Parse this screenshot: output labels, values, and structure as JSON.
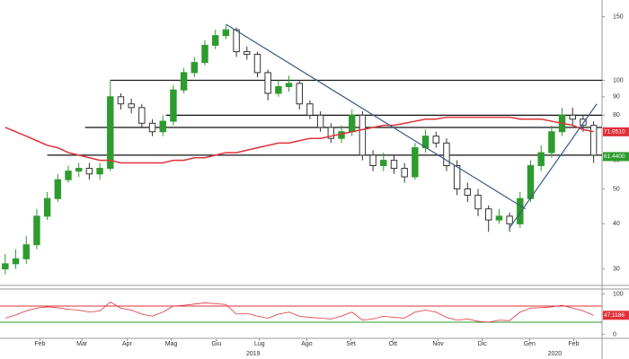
{
  "chart_data": [
    {
      "type": "candlestick",
      "log_scale": true,
      "ylim": [
        27,
        165
      ],
      "xlim": [
        -0.5,
        56.8
      ],
      "yticks": [
        30,
        40,
        50,
        60,
        80,
        90,
        100,
        150
      ],
      "xticks": [
        {
          "value": 3.3,
          "label": "Feb"
        },
        {
          "value": 7.3,
          "label": "Mar"
        },
        {
          "value": 11.6,
          "label": "Apr"
        },
        {
          "value": 15.8,
          "label": "Mag"
        },
        {
          "value": 20.1,
          "label": "Giu"
        },
        {
          "value": 24.2,
          "label": "Lug"
        },
        {
          "value": 28.7,
          "label": "Ago"
        },
        {
          "value": 32.9,
          "label": "Set"
        },
        {
          "value": 36.9,
          "label": "Ott"
        },
        {
          "value": 41.2,
          "label": "Nov"
        },
        {
          "value": 45.4,
          "label": "Dic"
        },
        {
          "value": 49.9,
          "label": "Gen"
        },
        {
          "value": 54.1,
          "label": "Feb"
        }
      ],
      "year_ticks": [
        {
          "value": 23.6,
          "label": "2019"
        },
        {
          "value": 52.3,
          "label": "2020"
        }
      ],
      "up_color": "#2e9b2e",
      "down_color": "#333333",
      "open": [
        30,
        31,
        32,
        35,
        42,
        47,
        53,
        56,
        57,
        55,
        57,
        90,
        86,
        84,
        76,
        72,
        77,
        94,
        105,
        112,
        125,
        133,
        138,
        120,
        118,
        105,
        92,
        96,
        98,
        86,
        80,
        74,
        69,
        72,
        80,
        62,
        58,
        60,
        57,
        54,
        65,
        70,
        67,
        58,
        50,
        48,
        44,
        41,
        42,
        40,
        47,
        58,
        63,
        72,
        80,
        78,
        75
      ],
      "high": [
        33,
        34,
        37,
        44,
        49,
        55,
        58,
        59,
        59,
        59,
        100,
        92,
        89,
        86,
        78,
        80,
        97,
        108,
        116,
        129,
        138,
        142,
        140,
        124,
        120,
        107,
        100,
        103,
        100,
        88,
        82,
        76,
        75,
        83,
        82,
        64,
        63,
        62,
        59,
        67,
        73,
        72,
        69,
        60,
        52,
        50,
        45,
        44,
        43,
        49,
        60,
        66,
        75,
        84,
        84,
        80,
        77
      ],
      "low": [
        29,
        30,
        31,
        34,
        41,
        46,
        52,
        54,
        53,
        53,
        56,
        83,
        81,
        74,
        70,
        70,
        75,
        92,
        102,
        110,
        122,
        130,
        116,
        114,
        102,
        88,
        90,
        93,
        83,
        78,
        72,
        67,
        67,
        70,
        60,
        56,
        56,
        55,
        52,
        53,
        63,
        65,
        56,
        48,
        46,
        42,
        38,
        40,
        38,
        39,
        46,
        56,
        61,
        70,
        75,
        72,
        59
      ],
      "close": [
        31,
        32,
        35,
        42,
        47,
        53,
        56,
        57,
        55,
        57,
        90,
        86,
        84,
        76,
        72,
        77,
        94,
        105,
        112,
        125,
        133,
        138,
        120,
        118,
        105,
        92,
        96,
        98,
        86,
        80,
        74,
        69,
        72,
        80,
        62,
        58,
        60,
        57,
        54,
        65,
        70,
        67,
        58,
        50,
        48,
        44,
        41,
        42,
        40,
        47,
        58,
        63,
        72,
        80,
        78,
        75,
        62
      ],
      "moving_average": {
        "color": "#e0303a",
        "values": [
          74,
          72,
          70,
          68,
          66,
          65,
          63,
          62,
          61,
          60,
          60,
          59,
          59,
          59,
          59,
          59,
          60,
          60,
          61,
          61,
          62,
          63,
          63,
          64,
          65,
          66,
          67,
          67,
          68,
          69,
          69,
          70,
          71,
          72,
          73,
          74,
          75,
          75,
          76,
          77,
          78,
          78,
          79,
          79,
          79,
          79,
          79,
          79,
          79,
          78,
          78,
          78,
          77,
          76,
          75,
          73,
          72
        ]
      },
      "levels": [
        {
          "value": 100,
          "from": 10
        },
        {
          "value": 80,
          "from": 15.3
        },
        {
          "value": 74,
          "from": 7.6
        },
        {
          "value": 62,
          "from": 4
        }
      ],
      "trendlines": [
        {
          "color": "#3a5a80",
          "x": [
            21,
            49.5
          ],
          "y": [
            143,
            44
          ]
        },
        {
          "color": "#3a5a80",
          "x": [
            48,
            56.3
          ],
          "y": [
            39,
            86
          ]
        }
      ],
      "tags": [
        {
          "value": 71.951,
          "label": "71.9510",
          "color": "#e0303a"
        },
        {
          "value": 61.44,
          "label": "61.4400",
          "color": "#2e9b2e"
        }
      ]
    },
    {
      "type": "line",
      "ylim": [
        -8,
        108
      ],
      "yticks": [
        0,
        50,
        100
      ],
      "color": "#e0303a",
      "values": [
        40,
        48,
        58,
        65,
        68,
        66,
        62,
        60,
        55,
        58,
        80,
        65,
        60,
        50,
        45,
        55,
        70,
        72,
        75,
        78,
        76,
        74,
        50,
        52,
        45,
        40,
        50,
        55,
        45,
        42,
        40,
        38,
        45,
        55,
        35,
        38,
        45,
        42,
        40,
        55,
        60,
        55,
        42,
        35,
        38,
        32,
        30,
        35,
        34,
        55,
        65,
        66,
        68,
        72,
        65,
        58,
        47
      ],
      "levels": [
        {
          "value": 70,
          "color": "#e0303a"
        },
        {
          "value": 30,
          "color": "#2e9b2e"
        }
      ],
      "tag": {
        "value": 47.1186,
        "label": "47.1186",
        "color": "#e0303a"
      }
    }
  ]
}
